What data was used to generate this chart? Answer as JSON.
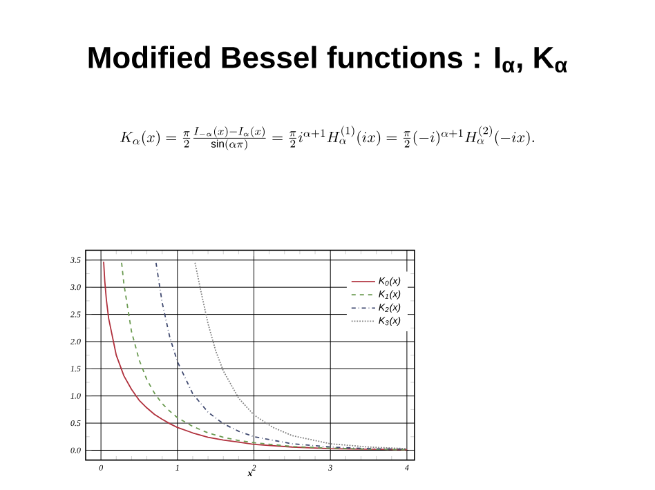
{
  "chart_data": {
    "type": "line",
    "title": "Modified Bessel functions : I$_{α}$, K$_{α}$",
    "subtitle": "K_\\alpha(x) = \\frac{\\pi}{2}\\frac{I_{-\\alpha}(x)-I_\\alpha(x)}{\\sin(\\alpha\\pi)} = \\frac{\\pi}{2} i^{\\alpha+1}H^{(1)}_\\alpha(ix) = \\frac{\\pi}{2}(-i)^{\\alpha+1}H^{(2)}_\\alpha(-ix).",
    "xlabel": "x",
    "xlim": [
      -0.2,
      4.1
    ],
    "ylim": [
      -0.18,
      3.68
    ],
    "xticks": [
      0,
      1,
      2,
      3,
      4
    ],
    "yticks": [
      {
        "value": 0,
        "label": "0.0"
      },
      {
        "value": 0.5,
        "label": "0.5"
      },
      {
        "value": 1,
        "label": "1.0"
      },
      {
        "value": 1.5,
        "label": "1.5"
      },
      {
        "value": 2,
        "label": "2.0"
      },
      {
        "value": 2.5,
        "label": "2.5"
      },
      {
        "value": 3,
        "label": "3.0"
      },
      {
        "value": 3.5,
        "label": "3.5"
      }
    ],
    "grid": true,
    "legend": "top right",
    "series": [
      {
        "name": "K$_{0}$(x)",
        "color": "#b0303c",
        "line_style": "solid",
        "x": [
          0.035,
          0.05,
          0.07,
          0.1,
          0.2,
          0.3,
          0.4,
          0.5,
          0.6,
          0.7,
          0.8,
          0.9,
          1.0,
          1.2,
          1.4,
          1.6,
          1.8,
          2.0,
          2.5,
          3.0,
          3.5,
          4.0
        ],
        "values": [
          3.47,
          3.11,
          2.78,
          2.43,
          1.75,
          1.37,
          1.12,
          0.92,
          0.78,
          0.66,
          0.57,
          0.49,
          0.42,
          0.32,
          0.24,
          0.19,
          0.15,
          0.11,
          0.06,
          0.03,
          0.02,
          0.01
        ]
      },
      {
        "name": "K$_{1}$(x)",
        "color": "#6a9a50",
        "line_style": "dashed",
        "x": [
          0.27,
          0.3,
          0.4,
          0.5,
          0.6,
          0.7,
          0.8,
          0.9,
          1.0,
          1.2,
          1.4,
          1.6,
          1.8,
          2.0,
          2.5,
          3.0,
          3.5,
          4.0
        ],
        "values": [
          3.45,
          3.06,
          2.18,
          1.66,
          1.3,
          1.05,
          0.86,
          0.72,
          0.6,
          0.44,
          0.32,
          0.24,
          0.18,
          0.14,
          0.07,
          0.04,
          0.02,
          0.01
        ]
      },
      {
        "name": "K$_{2}$(x)",
        "color": "#404a70",
        "line_style": "dashdot",
        "x": [
          0.72,
          0.8,
          0.9,
          1.0,
          1.2,
          1.4,
          1.6,
          1.8,
          2.0,
          2.5,
          3.0,
          3.5,
          4.0
        ],
        "values": [
          3.45,
          2.72,
          2.08,
          1.63,
          1.04,
          0.7,
          0.49,
          0.35,
          0.25,
          0.12,
          0.06,
          0.03,
          0.02
        ]
      },
      {
        "name": "K$_{3}$(x)",
        "color": "#808080",
        "line_style": "dotted",
        "x": [
          1.23,
          1.3,
          1.4,
          1.5,
          1.6,
          1.8,
          2.0,
          2.25,
          2.5,
          3.0,
          3.5,
          4.0
        ],
        "values": [
          3.45,
          2.97,
          2.33,
          1.83,
          1.46,
          0.96,
          0.65,
          0.42,
          0.27,
          0.12,
          0.06,
          0.03
        ]
      }
    ]
  }
}
